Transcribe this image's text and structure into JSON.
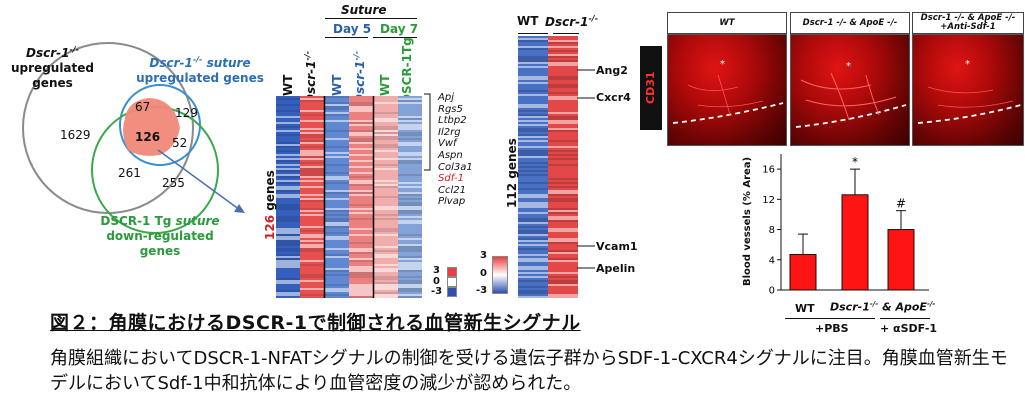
{
  "venn": {
    "title_gray": "Dscr-1",
    "title_gray_sup": "-/-",
    "title_gray_sub": "upregulated genes",
    "title_blue": "Dscr-1",
    "title_blue_sup": "-/-",
    "title_blue_suffix": "suture",
    "title_blue_sub": "upregulated genes",
    "title_green": "DSCR-1 Tg",
    "title_green_suffix": "suture",
    "title_green_sub": "down-regulated genes",
    "counts": {
      "gray_only": "1629",
      "gray_blue": "67",
      "blue_only": "129",
      "center": "126",
      "blue_green": "52",
      "gray_green": "261",
      "green_only": "255"
    },
    "colors": {
      "gray": "#8a8a8a",
      "blue": "#3a8fd0",
      "green": "#3aa84a",
      "center": "#f08878",
      "arrow": "#4a6fb8"
    }
  },
  "heatmap1": {
    "suture_label": "Suture",
    "day5_label": "Day 5",
    "day7_label": "Day 7",
    "columns": [
      {
        "label": "WT",
        "color": "#111111"
      },
      {
        "label": "Dscr-1",
        "sup": "-/-",
        "color": "#111111"
      },
      {
        "label": "WT",
        "color": "#2a5faa"
      },
      {
        "label": "Dscr-1",
        "sup": "-/-",
        "color": "#2a5faa"
      },
      {
        "label": "WT",
        "color": "#2a9a3a"
      },
      {
        "label": "DSCR-1Tg",
        "color": "#2a9a3a"
      }
    ],
    "genes_count": "126",
    "genes_word": "genes",
    "gene_list": [
      {
        "name": "Apj",
        "highlight": false
      },
      {
        "name": "Rgs5",
        "highlight": false
      },
      {
        "name": "Ltbp2",
        "highlight": false
      },
      {
        "name": "Il2rg",
        "highlight": false
      },
      {
        "name": "Vwf",
        "highlight": false
      },
      {
        "name": "Aspn",
        "highlight": false
      },
      {
        "name": "Col3a1",
        "highlight": false
      },
      {
        "name": "Sdf-1",
        "highlight": true
      },
      {
        "name": "Ccl21",
        "highlight": false
      },
      {
        "name": "Plvap",
        "highlight": false
      }
    ],
    "scale": [
      "3",
      "0",
      "-3"
    ]
  },
  "heatmap2": {
    "col1": "WT",
    "col2": "Dscr-1",
    "col2_sup": "-/-",
    "genes_label": "112 genes",
    "scale": [
      "3",
      "0",
      "-3"
    ],
    "markers": [
      "Ang2",
      "Cxcr4",
      "Vcam1",
      "Apelin"
    ]
  },
  "photos": {
    "headers": [
      {
        "line1": "WT",
        "line2": ""
      },
      {
        "line1": "Dscr-1 -/- & ApoE -/-",
        "line2": ""
      },
      {
        "line1": "Dscr-1 -/- & ApoE -/-",
        "line2": "+Anti-Sdf-1"
      }
    ],
    "stain_label": "CD31"
  },
  "bar_chart": {
    "ylabel": "Blood vessels (% Area)",
    "yticks": [
      "0",
      "4",
      "8",
      "12",
      "16"
    ],
    "ymax": 18,
    "values": [
      4.7,
      12.6,
      8.0
    ],
    "errors": [
      2.7,
      3.4,
      2.5
    ],
    "markers": [
      "",
      "*",
      "#"
    ],
    "group_wt": "WT",
    "group_ko": "Dscr-1",
    "group_ko_sup": "-/-",
    "group_ko_suffix": "& ApoE",
    "group_ko_suffix_sup": "-/-",
    "treat_pbs": "+PBS",
    "treat_sdf": "+ αSDF-1",
    "bar_color": "#ff1414"
  },
  "chart_data": {
    "type": "bar",
    "categories": [
      "WT +PBS",
      "Dscr-1-/- & ApoE-/- +PBS",
      "Dscr-1-/- & ApoE-/- + αSDF-1"
    ],
    "values": [
      4.7,
      12.6,
      8.0
    ],
    "ylabel": "Blood vessels (% Area)",
    "ylim": [
      0,
      18
    ]
  },
  "caption": {
    "title": "図２：角膜におけるDSCR-1で制御される血管新生シグナル",
    "body": "角膜組織においてDSCR-1-NFATシグナルの制御を受ける遺伝子群からSDF-1-CXCR4シグナルに注目。角膜血管新生モデルにおいてSdf-1中和抗体により血管密度の減少が認められた。"
  }
}
